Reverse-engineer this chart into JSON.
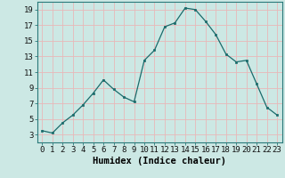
{
  "x": [
    0,
    1,
    2,
    3,
    4,
    5,
    6,
    7,
    8,
    9,
    10,
    11,
    12,
    13,
    14,
    15,
    16,
    17,
    18,
    19,
    20,
    21,
    22,
    23
  ],
  "y": [
    3.5,
    3.2,
    4.5,
    5.5,
    6.8,
    8.3,
    10.0,
    8.8,
    7.8,
    7.2,
    12.5,
    13.8,
    16.8,
    17.3,
    19.2,
    19.0,
    17.5,
    15.8,
    13.3,
    12.3,
    12.5,
    9.5,
    6.5,
    5.5
  ],
  "xlabel": "Humidex (Indice chaleur)",
  "bg_color": "#cce8e4",
  "grid_color": "#e8b8b8",
  "line_color": "#1a6b6b",
  "marker_color": "#1a6b6b",
  "ylim": [
    2,
    20
  ],
  "xlim": [
    -0.5,
    23.5
  ],
  "yticks": [
    3,
    5,
    7,
    9,
    11,
    13,
    15,
    17,
    19
  ],
  "xticks": [
    0,
    1,
    2,
    3,
    4,
    5,
    6,
    7,
    8,
    9,
    10,
    11,
    12,
    13,
    14,
    15,
    16,
    17,
    18,
    19,
    20,
    21,
    22,
    23
  ],
  "xtick_labels": [
    "0",
    "1",
    "2",
    "3",
    "4",
    "5",
    "6",
    "7",
    "8",
    "9",
    "10",
    "11",
    "12",
    "13",
    "14",
    "15",
    "16",
    "17",
    "18",
    "19",
    "20",
    "21",
    "22",
    "23"
  ],
  "xlabel_fontsize": 7.5,
  "tick_fontsize": 6.5
}
